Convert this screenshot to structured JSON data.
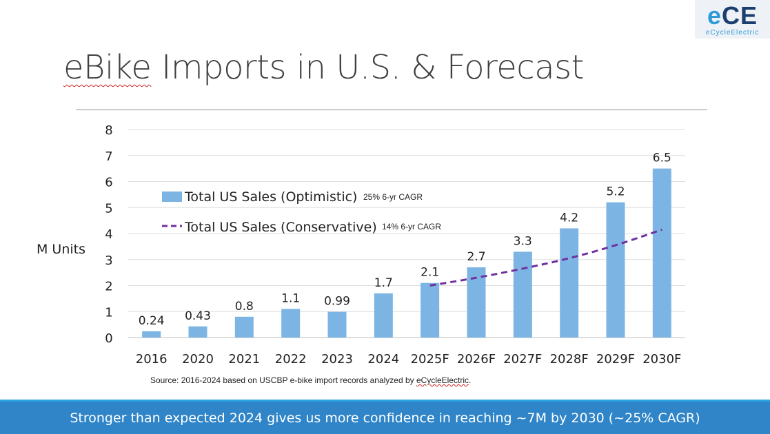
{
  "slide": {
    "title_part1": "eBike",
    "title_part2": " Imports in U.S. & Forecast",
    "logo_mark_e": "e",
    "logo_mark_ce": "CE",
    "logo_sub": "eCycleElectric",
    "source_part1": "Source: 2016-2024 based on USCBP e-bike import records analyzed by ",
    "source_part2": "eCycleElectric",
    "source_part3": ".",
    "banner": "Stronger than expected 2024 gives us more confidence in reaching ~7M by 2030 (~25% CAGR)"
  },
  "chart_data": {
    "type": "bar",
    "ylabel": "M Units",
    "ylim": [
      0,
      8
    ],
    "yticks": [
      0,
      1,
      2,
      3,
      4,
      5,
      6,
      7,
      8
    ],
    "grid": true,
    "categories": [
      "2016",
      "2020",
      "2021",
      "2022",
      "2023",
      "2024",
      "2025F",
      "2026F",
      "2027F",
      "2028F",
      "2029F",
      "2030F"
    ],
    "series": [
      {
        "name": "Total US Sales (Optimistic)",
        "type": "bar",
        "color": "#7cb5e3",
        "values": [
          0.24,
          0.43,
          0.8,
          1.1,
          0.99,
          1.7,
          2.1,
          2.7,
          3.3,
          4.2,
          5.2,
          6.5
        ],
        "labels": [
          "0.24",
          "0.43",
          "0.8",
          "1.1",
          "0.99",
          "1.7",
          "2.1",
          "2.7",
          "3.3",
          "4.2",
          "5.2",
          "6.5"
        ],
        "note": "25% 6-yr CAGR"
      },
      {
        "name": "Total US Sales (Conservative)",
        "type": "line",
        "style": "dashed",
        "color": "#7030a0",
        "values": [
          null,
          null,
          null,
          null,
          null,
          null,
          2.0,
          2.3,
          2.65,
          3.05,
          3.55,
          4.15
        ],
        "note": "14% 6-yr CAGR"
      }
    ],
    "legend_position": "top-left"
  }
}
